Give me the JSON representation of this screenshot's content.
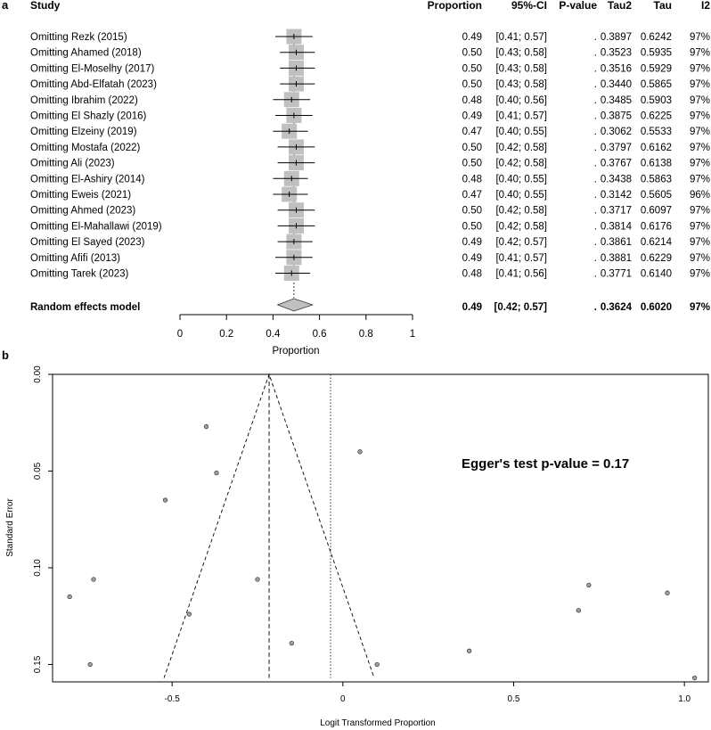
{
  "panel_a": {
    "label": "a",
    "headers": {
      "study": "Study",
      "proportion": "Proportion",
      "ci": "95%-CI",
      "pvalue": "P-value",
      "tau2": "Tau2",
      "tau": "Tau",
      "i2": "I2"
    },
    "rows": [
      {
        "study": "Omitting Rezk (2015)",
        "prop": "0.49",
        "ci": "[0.41; 0.57]",
        "p": ".",
        "tau2": "0.3897",
        "tau": "0.6242",
        "i2": "97%"
      },
      {
        "study": "Omitting Ahamed (2018)",
        "prop": "0.50",
        "ci": "[0.43; 0.58]",
        "p": ".",
        "tau2": "0.3523",
        "tau": "0.5935",
        "i2": "97%"
      },
      {
        "study": "Omitting El-Moselhy (2017)",
        "prop": "0.50",
        "ci": "[0.43; 0.58]",
        "p": ".",
        "tau2": "0.3516",
        "tau": "0.5929",
        "i2": "97%"
      },
      {
        "study": "Omitting Abd-Elfatah (2023)",
        "prop": "0.50",
        "ci": "[0.43; 0.58]",
        "p": ".",
        "tau2": "0.3440",
        "tau": "0.5865",
        "i2": "97%"
      },
      {
        "study": "Omitting Ibrahim (2022)",
        "prop": "0.48",
        "ci": "[0.40; 0.56]",
        "p": ".",
        "tau2": "0.3485",
        "tau": "0.5903",
        "i2": "97%"
      },
      {
        "study": "Omitting El Shazly (2016)",
        "prop": "0.49",
        "ci": "[0.41; 0.57]",
        "p": ".",
        "tau2": "0.3875",
        "tau": "0.6225",
        "i2": "97%"
      },
      {
        "study": "Omitting Elzeiny (2019)",
        "prop": "0.47",
        "ci": "[0.40; 0.55]",
        "p": ".",
        "tau2": "0.3062",
        "tau": "0.5533",
        "i2": "97%"
      },
      {
        "study": "Omitting Mostafa (2022)",
        "prop": "0.50",
        "ci": "[0.42; 0.58]",
        "p": ".",
        "tau2": "0.3797",
        "tau": "0.6162",
        "i2": "97%"
      },
      {
        "study": "Omitting Ali (2023)",
        "prop": "0.50",
        "ci": "[0.42; 0.58]",
        "p": ".",
        "tau2": "0.3767",
        "tau": "0.6138",
        "i2": "97%"
      },
      {
        "study": "Omitting El-Ashiry (2014)",
        "prop": "0.48",
        "ci": "[0.40; 0.55]",
        "p": ".",
        "tau2": "0.3438",
        "tau": "0.5863",
        "i2": "97%"
      },
      {
        "study": "Omitting Eweis (2021)",
        "prop": "0.47",
        "ci": "[0.40; 0.55]",
        "p": ".",
        "tau2": "0.3142",
        "tau": "0.5605",
        "i2": "96%"
      },
      {
        "study": "Omitting Ahmed (2023)",
        "prop": "0.50",
        "ci": "[0.42; 0.58]",
        "p": ".",
        "tau2": "0.3717",
        "tau": "0.6097",
        "i2": "97%"
      },
      {
        "study": "Omitting El-Mahallawi (2019)",
        "prop": "0.50",
        "ci": "[0.42; 0.58]",
        "p": ".",
        "tau2": "0.3814",
        "tau": "0.6176",
        "i2": "97%"
      },
      {
        "study": "Omitting El Sayed (2023)",
        "prop": "0.49",
        "ci": "[0.42; 0.57]",
        "p": ".",
        "tau2": "0.3861",
        "tau": "0.6214",
        "i2": "97%"
      },
      {
        "study": "Omitting Afifi (2013)",
        "prop": "0.49",
        "ci": "[0.41; 0.57]",
        "p": ".",
        "tau2": "0.3881",
        "tau": "0.6229",
        "i2": "97%"
      },
      {
        "study": "Omitting Tarek (2023)",
        "prop": "0.48",
        "ci": "[0.41; 0.56]",
        "p": ".",
        "tau2": "0.3771",
        "tau": "0.6140",
        "i2": "97%"
      }
    ],
    "summary": {
      "study": "Random effects model",
      "prop": "0.49",
      "ci": "[0.42; 0.57]",
      "p": ".",
      "tau2": "0.3624",
      "tau": "0.6020",
      "i2": "97%"
    },
    "xlabel": "Proportion",
    "xticks": [
      "0",
      "0.2",
      "0.4",
      "0.6",
      "0.8",
      "1"
    ]
  },
  "panel_b": {
    "label": "b",
    "annotation": "Egger's test p-value = 0.17",
    "xlabel": "Logit Transformed Proportion",
    "ylabel": "Standard Error",
    "xticks": [
      "-0.5",
      "0",
      "0.5",
      "1.0"
    ],
    "yticks": [
      "0.00",
      "0.05",
      "0.10",
      "0.15"
    ]
  },
  "chart_data": [
    {
      "type": "forest",
      "xlabel": "Proportion",
      "xlim": [
        0,
        1
      ],
      "x_ticks": [
        0,
        0.2,
        0.4,
        0.6,
        0.8,
        1
      ],
      "estimates": [
        {
          "label": "Omitting Rezk (2015)",
          "est": 0.49,
          "lo": 0.41,
          "hi": 0.57
        },
        {
          "label": "Omitting Ahamed (2018)",
          "est": 0.5,
          "lo": 0.43,
          "hi": 0.58
        },
        {
          "label": "Omitting El-Moselhy (2017)",
          "est": 0.5,
          "lo": 0.43,
          "hi": 0.58
        },
        {
          "label": "Omitting Abd-Elfatah (2023)",
          "est": 0.5,
          "lo": 0.43,
          "hi": 0.58
        },
        {
          "label": "Omitting Ibrahim (2022)",
          "est": 0.48,
          "lo": 0.4,
          "hi": 0.56
        },
        {
          "label": "Omitting El Shazly (2016)",
          "est": 0.49,
          "lo": 0.41,
          "hi": 0.57
        },
        {
          "label": "Omitting Elzeiny (2019)",
          "est": 0.47,
          "lo": 0.4,
          "hi": 0.55
        },
        {
          "label": "Omitting Mostafa (2022)",
          "est": 0.5,
          "lo": 0.42,
          "hi": 0.58
        },
        {
          "label": "Omitting Ali (2023)",
          "est": 0.5,
          "lo": 0.42,
          "hi": 0.58
        },
        {
          "label": "Omitting El-Ashiry (2014)",
          "est": 0.48,
          "lo": 0.4,
          "hi": 0.55
        },
        {
          "label": "Omitting Eweis (2021)",
          "est": 0.47,
          "lo": 0.4,
          "hi": 0.55
        },
        {
          "label": "Omitting Ahmed (2023)",
          "est": 0.5,
          "lo": 0.42,
          "hi": 0.58
        },
        {
          "label": "Omitting El-Mahallawi (2019)",
          "est": 0.5,
          "lo": 0.42,
          "hi": 0.58
        },
        {
          "label": "Omitting El Sayed (2023)",
          "est": 0.49,
          "lo": 0.42,
          "hi": 0.57
        },
        {
          "label": "Omitting Afifi (2013)",
          "est": 0.49,
          "lo": 0.41,
          "hi": 0.57
        },
        {
          "label": "Omitting Tarek (2023)",
          "est": 0.48,
          "lo": 0.41,
          "hi": 0.56
        }
      ],
      "pooled": {
        "label": "Random effects model",
        "est": 0.49,
        "lo": 0.42,
        "hi": 0.57
      },
      "reference_line": 0.49,
      "box_color": "#c0c0c0",
      "diamond_color": "#c0c0c0"
    },
    {
      "type": "scatter",
      "subtype": "funnel",
      "xlabel": "Logit Transformed Proportion",
      "ylabel": "Standard Error",
      "xlim": [
        -0.85,
        1.07
      ],
      "ylim": [
        0.159,
        0.0
      ],
      "x_ticks": [
        -0.5,
        0,
        0.5,
        1.0
      ],
      "y_ticks": [
        0.0,
        0.05,
        0.1,
        0.15
      ],
      "y_reversed": true,
      "pooled_estimate": -0.216,
      "reference_line": -0.036,
      "funnel_max_se": 0.157,
      "point_color": "#a0a0a0",
      "points": [
        {
          "x": -0.4,
          "y": 0.027
        },
        {
          "x": 0.05,
          "y": 0.04
        },
        {
          "x": -0.37,
          "y": 0.051
        },
        {
          "x": -0.52,
          "y": 0.065
        },
        {
          "x": -0.73,
          "y": 0.106
        },
        {
          "x": -0.25,
          "y": 0.106
        },
        {
          "x": -0.8,
          "y": 0.115
        },
        {
          "x": 0.72,
          "y": 0.109
        },
        {
          "x": 0.95,
          "y": 0.113
        },
        {
          "x": 0.69,
          "y": 0.122
        },
        {
          "x": -0.45,
          "y": 0.124
        },
        {
          "x": -0.15,
          "y": 0.139
        },
        {
          "x": 0.37,
          "y": 0.143
        },
        {
          "x": -0.74,
          "y": 0.15
        },
        {
          "x": 0.1,
          "y": 0.15
        },
        {
          "x": 1.03,
          "y": 0.157
        }
      ]
    }
  ]
}
